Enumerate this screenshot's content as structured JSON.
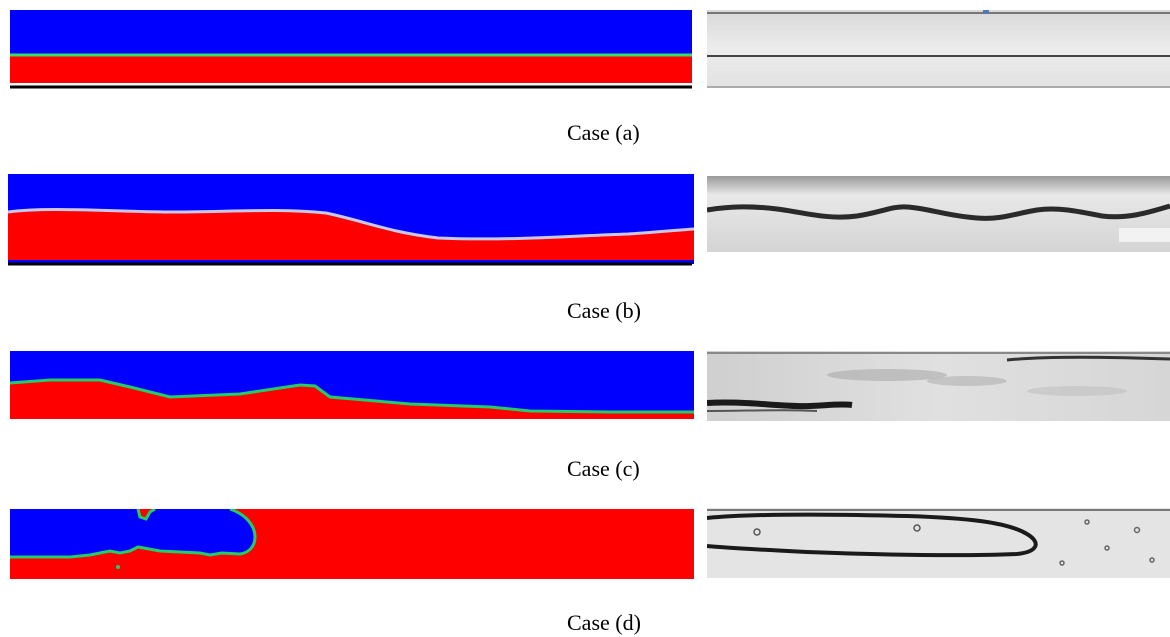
{
  "cases": [
    {
      "label": "Case (a)"
    },
    {
      "label": "Case (b)"
    },
    {
      "label": "Case (c)"
    },
    {
      "label": "Case (d)"
    }
  ],
  "colors": {
    "phase_top": "#0000ff",
    "phase_bottom": "#ff0000",
    "interface": "#22cc66",
    "photo_light": "#e6e6e6",
    "photo_dark": "#2a2a2a"
  }
}
